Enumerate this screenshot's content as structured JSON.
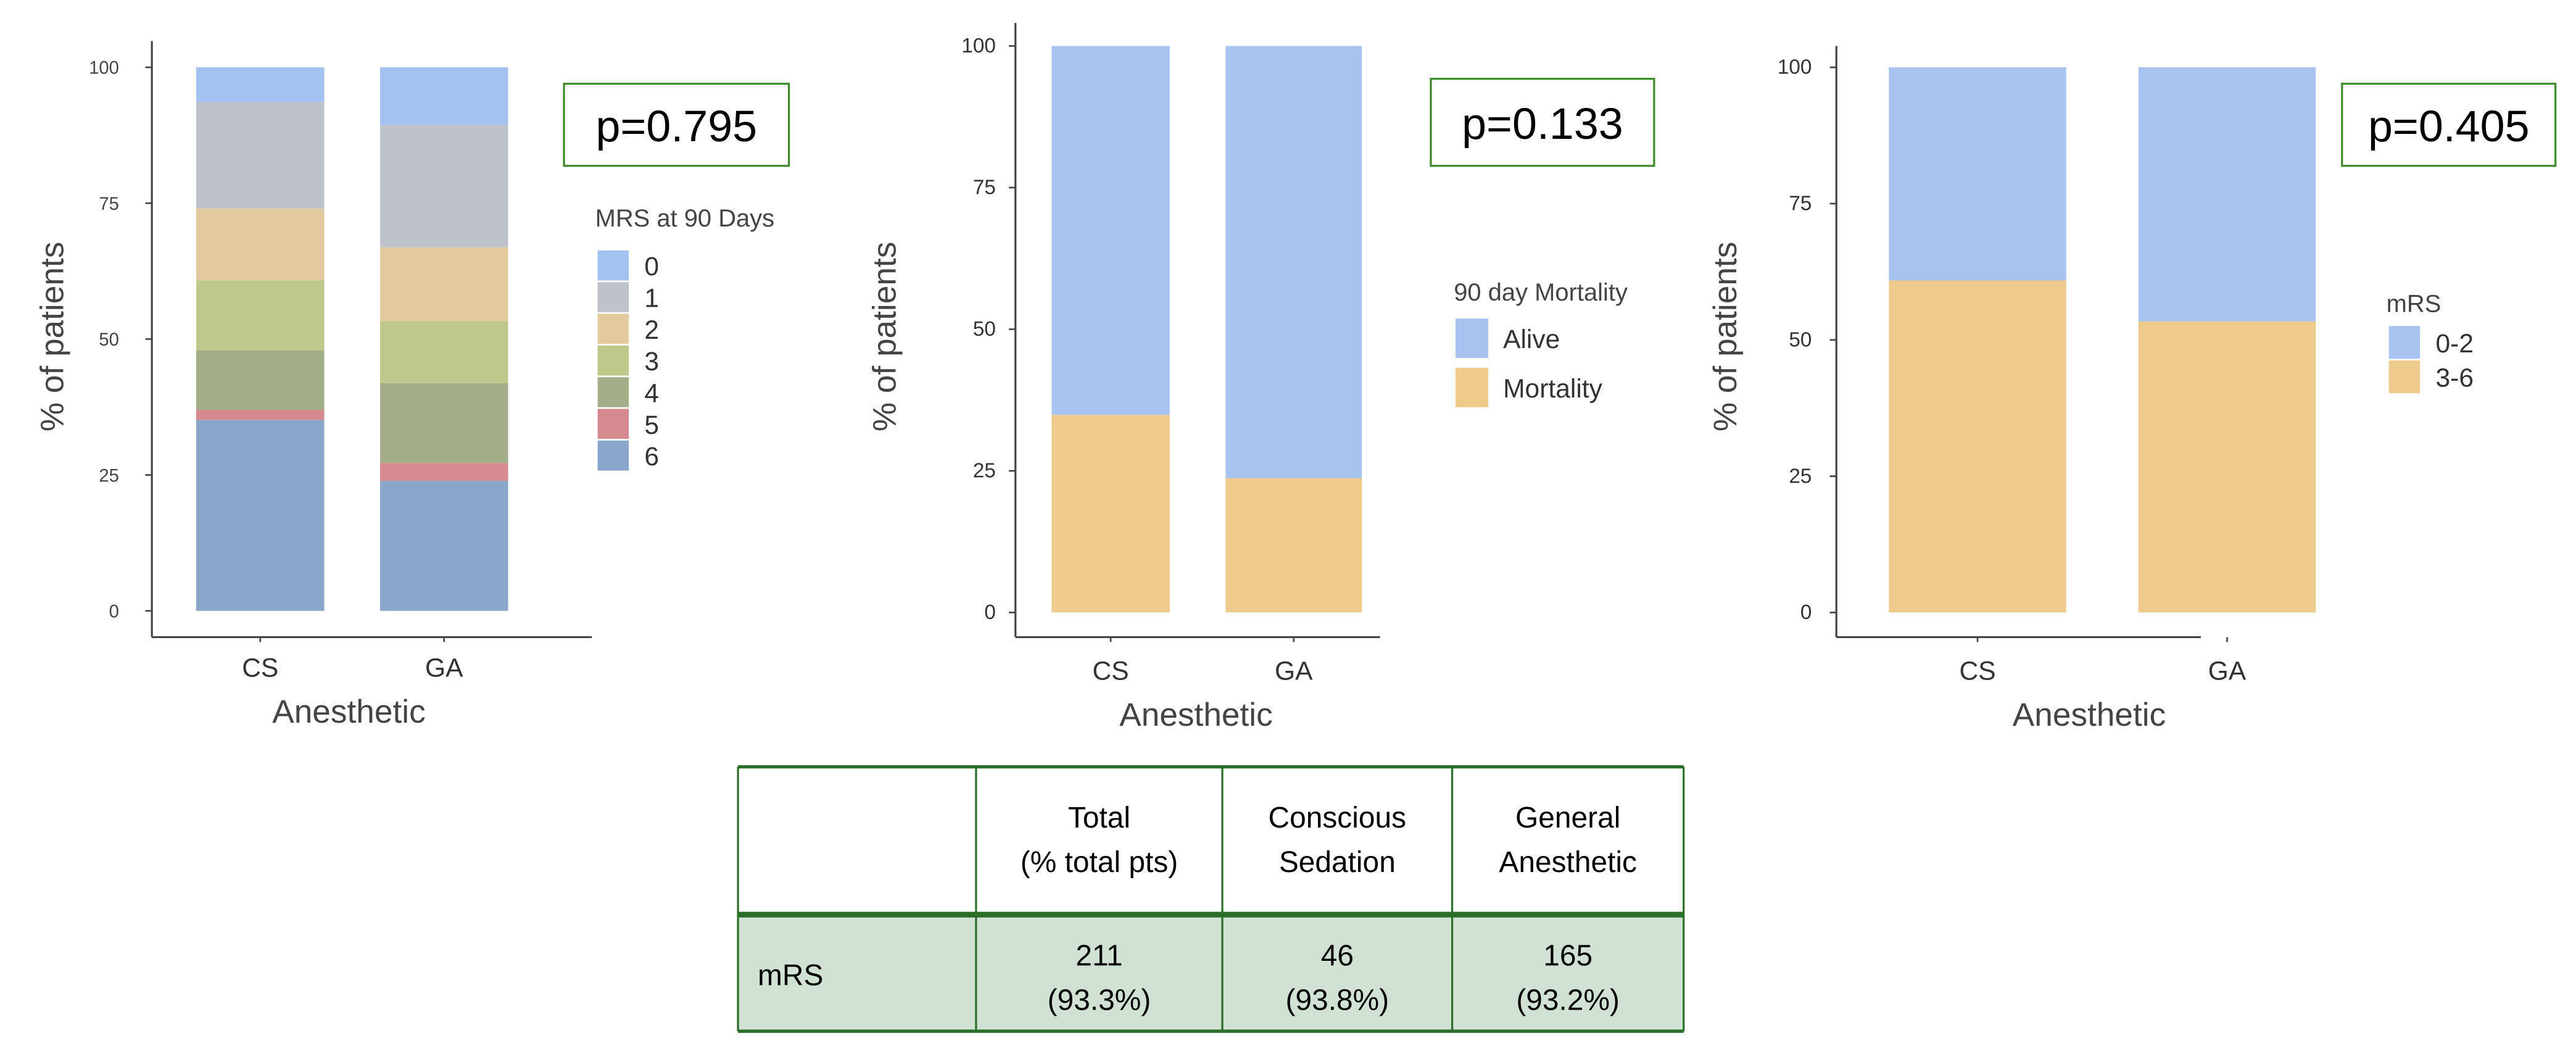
{
  "charts": [
    {
      "type": "bar",
      "stacked": true,
      "xlabel": "Anesthetic",
      "ylabel": "% of patients",
      "ylim": [
        0,
        100
      ],
      "yticks": [
        "0",
        "25",
        "50",
        "75",
        "100"
      ],
      "categories": [
        "CS",
        "GA"
      ],
      "p_value": "p=0.795",
      "legend_title": "MRS at 90 Days",
      "legend_position": "right",
      "series": [
        {
          "name": "0",
          "color": "#a4c2f0",
          "values": [
            6.4,
            10.6
          ]
        },
        {
          "name": "1",
          "color": "#bec3cb",
          "values": [
            19.6,
            22.5
          ]
        },
        {
          "name": "2",
          "color": "#e2c99e",
          "values": [
            13.2,
            13.6
          ]
        },
        {
          "name": "3",
          "color": "#bdc88a",
          "values": [
            12.9,
            11.4
          ]
        },
        {
          "name": "4",
          "color": "#a3ae88",
          "values": [
            10.9,
            14.7
          ]
        },
        {
          "name": "5",
          "color": "#d48a8f",
          "values": [
            1.9,
            3.3
          ]
        },
        {
          "name": "6",
          "color": "#8aa6cb",
          "values": [
            35.1,
            23.9
          ]
        }
      ]
    },
    {
      "type": "bar",
      "stacked": true,
      "xlabel": "Anesthetic",
      "ylabel": "% of patients",
      "ylim": [
        0,
        100
      ],
      "yticks": [
        "0",
        "25",
        "50",
        "75",
        "100"
      ],
      "categories": [
        "CS",
        "GA"
      ],
      "p_value": "p=0.133",
      "legend_title": "90 day Mortality",
      "legend_position": "right",
      "series": [
        {
          "name": "Alive",
          "color": "#a8c3f0",
          "values": [
            65.1,
            76.3
          ]
        },
        {
          "name": "Mortality",
          "color": "#eecb8c",
          "values": [
            34.9,
            23.7
          ]
        }
      ]
    },
    {
      "type": "bar",
      "stacked": true,
      "xlabel": "Anesthetic",
      "ylabel": "% of patients",
      "ylim": [
        0,
        100
      ],
      "yticks": [
        "0",
        "25",
        "50",
        "75",
        "100"
      ],
      "categories": [
        "CS",
        "GA"
      ],
      "p_value": "p=0.405",
      "legend_title": "mRS",
      "legend_position": "right",
      "series": [
        {
          "name": "0-2",
          "color": "#a8c3f0",
          "values": [
            39.1,
            46.6
          ]
        },
        {
          "name": "3-6",
          "color": "#eecb8c",
          "values": [
            60.9,
            53.4
          ]
        }
      ]
    }
  ],
  "table": {
    "headers": [
      [
        "",
        ""
      ],
      [
        "Total",
        "(% total pts)"
      ],
      [
        "Conscious",
        "Sedation"
      ],
      [
        "General",
        "Anesthetic"
      ]
    ],
    "rows": [
      {
        "label": "mRS",
        "cells": [
          [
            "211",
            "(93.3%)"
          ],
          [
            "46",
            "(93.8%)"
          ],
          [
            "165",
            "(93.2%)"
          ]
        ]
      }
    ],
    "border_color": "#2a6e2a",
    "row_fill": "#d1e2d4"
  }
}
